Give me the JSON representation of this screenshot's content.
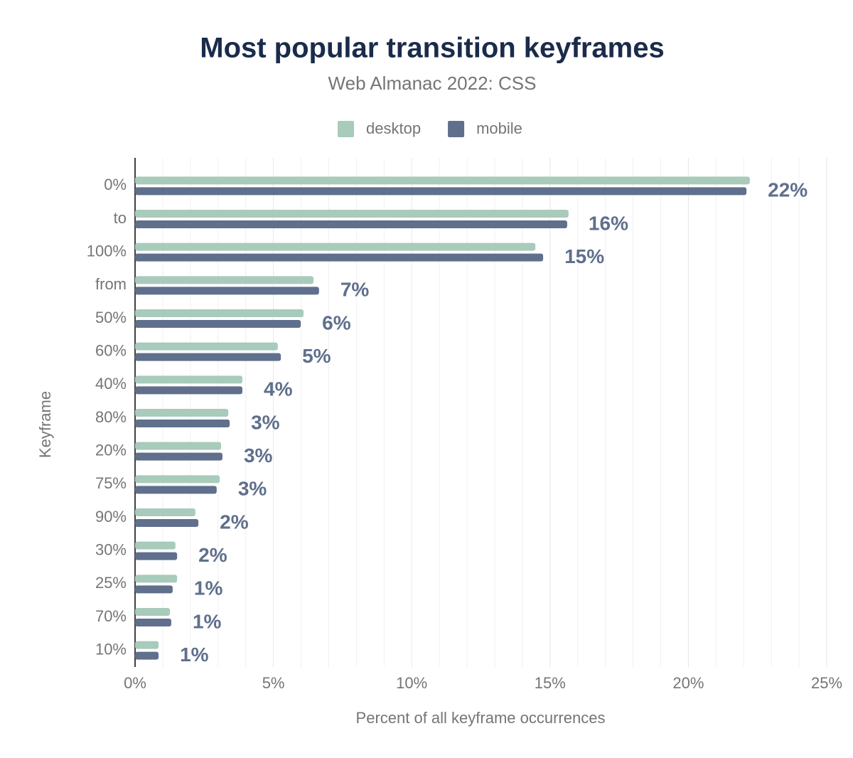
{
  "chart_data": {
    "type": "bar",
    "orientation": "horizontal",
    "title": "Most popular transition keyframes",
    "subtitle": "Web Almanac 2022: CSS",
    "x_label": "Percent of all keyframe occurrences",
    "y_label": "Keyframe",
    "categories": [
      "0%",
      "to",
      "100%",
      "from",
      "50%",
      "60%",
      "40%",
      "80%",
      "20%",
      "75%",
      "90%",
      "30%",
      "25%",
      "70%",
      "10%"
    ],
    "series": [
      {
        "name": "desktop",
        "color": "#a8cbbb",
        "values": [
          22.22,
          15.67,
          14.47,
          6.45,
          6.09,
          5.16,
          3.88,
          3.37,
          3.11,
          3.06,
          2.18,
          1.46,
          1.52,
          1.26,
          0.85
        ]
      },
      {
        "name": "mobile",
        "color": "#5f6f8c",
        "values": [
          22.1,
          15.62,
          14.75,
          6.65,
          5.99,
          5.27,
          3.88,
          3.42,
          3.16,
          2.95,
          2.29,
          1.52,
          1.36,
          1.31,
          0.85
        ],
        "value_labels": [
          "22%",
          "16%",
          "15%",
          "7%",
          "6%",
          "5%",
          "4%",
          "3%",
          "3%",
          "3%",
          "2%",
          "2%",
          "1%",
          "1%",
          "1%"
        ]
      }
    ],
    "xlim": [
      0,
      25
    ],
    "xticks": [
      {
        "value": 0,
        "label": "0%"
      },
      {
        "value": 5,
        "label": "5%"
      },
      {
        "value": 10,
        "label": "10%"
      },
      {
        "value": 15,
        "label": "15%"
      },
      {
        "value": 20,
        "label": "20%"
      },
      {
        "value": 25,
        "label": "25%"
      }
    ],
    "xminor_ticks": [
      1,
      2,
      3,
      4,
      6,
      7,
      8,
      9,
      11,
      12,
      13,
      14,
      16,
      17,
      18,
      19,
      21,
      22,
      23,
      24
    ],
    "grid": true,
    "legend": "top"
  }
}
